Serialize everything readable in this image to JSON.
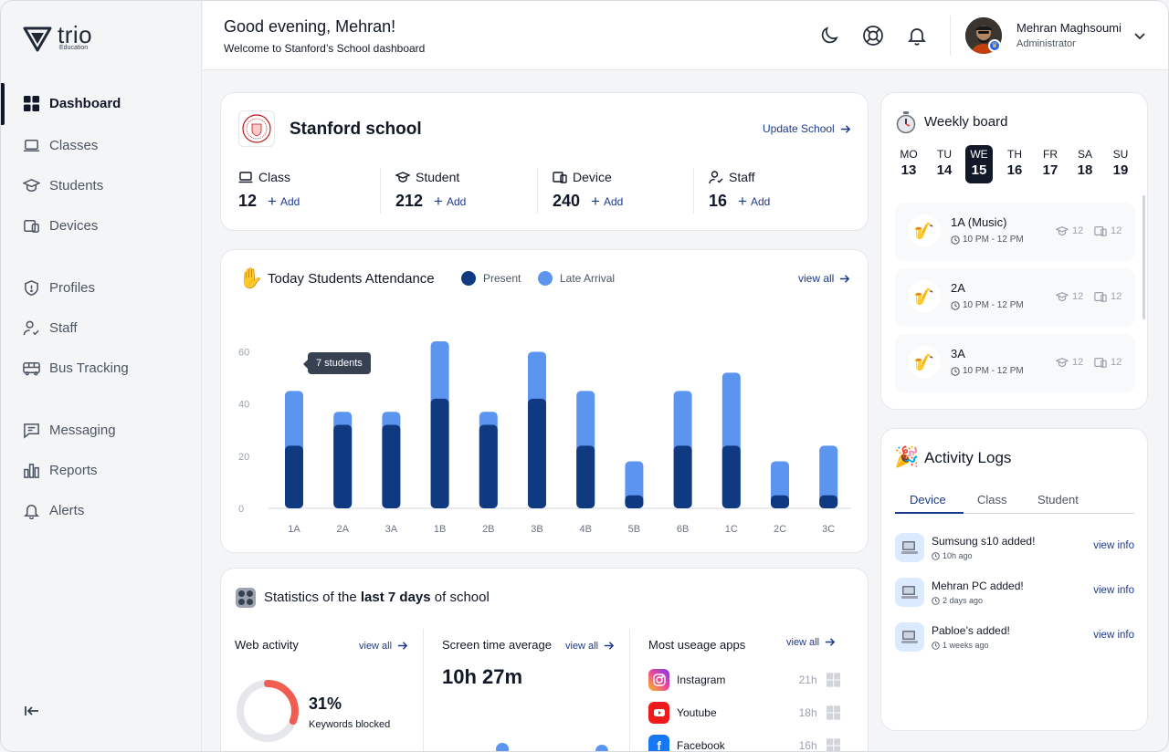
{
  "brand": {
    "name": "trio",
    "sub": "Education"
  },
  "sidebar": {
    "items": [
      {
        "label": "Dashboard",
        "icon": "grid-icon"
      },
      {
        "label": "Classes",
        "icon": "laptop-icon"
      },
      {
        "label": "Students",
        "icon": "graduation-cap-icon"
      },
      {
        "label": "Devices",
        "icon": "devices-icon"
      },
      {
        "label": "Profiles",
        "icon": "shield-icon"
      },
      {
        "label": "Staff",
        "icon": "user-check-icon"
      },
      {
        "label": "Bus Tracking",
        "icon": "bus-icon"
      },
      {
        "label": "Messaging",
        "icon": "message-icon"
      },
      {
        "label": "Reports",
        "icon": "bar-chart-icon"
      },
      {
        "label": "Alerts",
        "icon": "bell-icon"
      }
    ]
  },
  "header": {
    "greeting": "Good evening, Mehran!",
    "subtitle": "Welcome to Stanford’s School dashboard",
    "user": {
      "name": "Mehran Maghsoumi",
      "role": "Administrator"
    }
  },
  "school": {
    "name": "Stanford school",
    "update_label": "Update School",
    "add_label": "Add",
    "stats": [
      {
        "label": "Class",
        "value": "12"
      },
      {
        "label": "Student",
        "value": "212"
      },
      {
        "label": "Device",
        "value": "240"
      },
      {
        "label": "Staff",
        "value": "16"
      }
    ]
  },
  "attendance": {
    "title": "Today Students Attendance",
    "legend_present": "Present",
    "legend_late": "Late Arrival",
    "view_all": "view all",
    "tooltip": "7 students",
    "colors": {
      "present": "#0f3a82",
      "late": "#5b95ef"
    }
  },
  "chart_data": {
    "type": "bar",
    "stacked": true,
    "categories": [
      "1A",
      "2A",
      "3A",
      "1B",
      "2B",
      "3B",
      "4B",
      "5B",
      "6B",
      "1C",
      "2C",
      "3C"
    ],
    "series": [
      {
        "name": "Present",
        "values": [
          24,
          32,
          32,
          42,
          32,
          42,
          24,
          5,
          24,
          24,
          5,
          5
        ]
      },
      {
        "name": "Late Arrival",
        "values": [
          21,
          5,
          5,
          22,
          5,
          18,
          21,
          13,
          21,
          28,
          13,
          19
        ]
      }
    ],
    "yticks": [
      "0",
      "20",
      "40",
      "60"
    ],
    "ylim": [
      0,
      64
    ]
  },
  "stats": {
    "title_pre": "Statistics of the ",
    "title_bold": "last 7 days",
    "title_post": " of school",
    "web": {
      "title": "Web activity",
      "view_all": "view all",
      "percent": "31%",
      "caption": "Keywords blocked",
      "value": 0.31
    },
    "screen": {
      "title": "Screen time average",
      "view_all": "view all",
      "value": "10h 27m"
    },
    "apps": {
      "title": "Most useage apps",
      "view_all": "view all",
      "items": [
        {
          "name": "Instagram",
          "time": "21h"
        },
        {
          "name": "Youtube",
          "time": "18h"
        },
        {
          "name": "Facebook",
          "time": "16h"
        }
      ]
    }
  },
  "weekly": {
    "title": "Weekly board",
    "days": [
      {
        "d": "MO",
        "n": "13"
      },
      {
        "d": "TU",
        "n": "14"
      },
      {
        "d": "WE",
        "n": "15"
      },
      {
        "d": "TH",
        "n": "16"
      },
      {
        "d": "FR",
        "n": "17"
      },
      {
        "d": "SA",
        "n": "18"
      },
      {
        "d": "SU",
        "n": "19"
      }
    ],
    "classes": [
      {
        "name": "1A (Music)",
        "time": "10 PM - 12 PM",
        "students": "12",
        "devices": "12"
      },
      {
        "name": "2A",
        "time": "10 PM - 12 PM",
        "students": "12",
        "devices": "12"
      },
      {
        "name": "3A",
        "time": "10 PM - 12 PM",
        "students": "12",
        "devices": "12"
      }
    ]
  },
  "activity": {
    "title": "Activity Logs",
    "tabs": [
      "Device",
      "Class",
      "Student"
    ],
    "logs": [
      {
        "name": "Sumsung s10",
        "suffix": " added!",
        "time": "10h ago",
        "link": "view info"
      },
      {
        "name": "Mehran PC",
        "suffix": " added!",
        "time": "2 days ago",
        "link": "view info"
      },
      {
        "name": "Pabloe’s",
        "suffix": " added!",
        "time": "1 weeks ago",
        "link": "view info"
      }
    ]
  }
}
